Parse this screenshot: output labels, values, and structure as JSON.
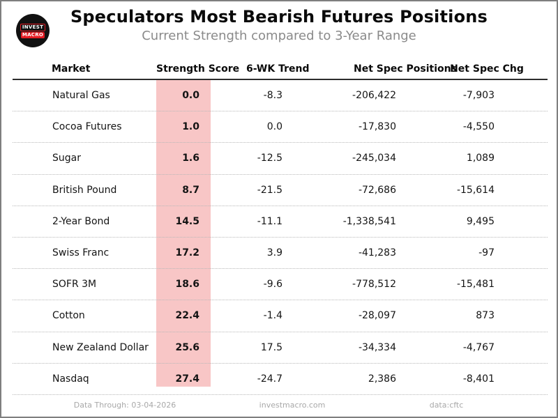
{
  "header": {
    "title": "Speculators Most Bearish Futures Positions",
    "subtitle": "Current Strength compared to 3-Year Range"
  },
  "logo": {
    "line1": "INVEST",
    "line2": "MACRO"
  },
  "chart_data": {
    "type": "table",
    "title": "Speculators Most Bearish Futures Positions",
    "subtitle": "Current Strength compared to 3-Year Range",
    "columns": [
      "Market",
      "Strength Score",
      "6-WK Trend",
      "Net Spec Positions",
      "Net Spec Chg"
    ],
    "rows": [
      [
        "Natural Gas",
        "0.0",
        "-8.3",
        "-206,422",
        "-7,903"
      ],
      [
        "Cocoa Futures",
        "1.0",
        "0.0",
        "-17,830",
        "-4,550"
      ],
      [
        "Sugar",
        "1.6",
        "-12.5",
        "-245,034",
        "1,089"
      ],
      [
        "British Pound",
        "8.7",
        "-21.5",
        "-72,686",
        "-15,614"
      ],
      [
        "2-Year Bond",
        "14.5",
        "-11.1",
        "-1,338,541",
        "9,495"
      ],
      [
        "Swiss Franc",
        "17.2",
        "3.9",
        "-41,283",
        "-97"
      ],
      [
        "SOFR 3M",
        "18.6",
        "-9.6",
        "-778,512",
        "-15,481"
      ],
      [
        "Cotton",
        "22.4",
        "-1.4",
        "-28,097",
        "873"
      ],
      [
        "New Zealand Dollar",
        "25.6",
        "17.5",
        "-34,334",
        "-4,767"
      ],
      [
        "Nasdaq",
        "27.4",
        "-24.7",
        "2,386",
        "-8,401"
      ]
    ],
    "layout": {
      "score_column_highlighted": true,
      "grid": "dotted-row-separators"
    }
  },
  "footer": {
    "data_through": "Data Through: 03-04-2026",
    "website": "investmacro.com",
    "source": "data:cftc"
  },
  "colors": {
    "highlight_pink": "#f8c6c6",
    "logo_red": "#e31b23",
    "logo_black": "#111111",
    "subtitle_gray": "#8a8a8a"
  }
}
